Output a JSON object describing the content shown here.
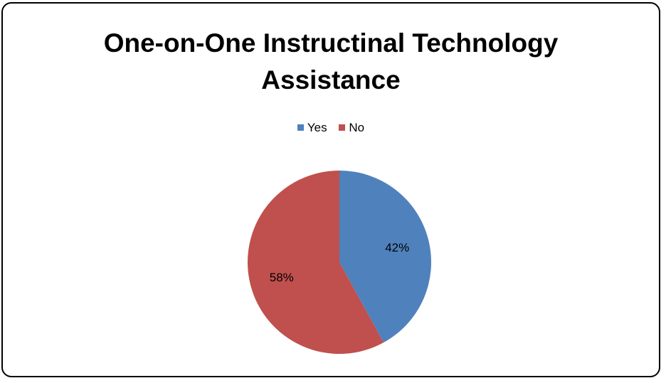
{
  "chart_data": {
    "type": "pie",
    "title_lines": [
      "One-on-One Instructinal Technology",
      "Assistance"
    ],
    "categories": [
      "Yes",
      "No"
    ],
    "values": [
      42,
      58
    ],
    "labels": [
      "42%",
      "58%"
    ],
    "colors": [
      "#4f81bd",
      "#c0504d"
    ],
    "legend_position": "top"
  }
}
